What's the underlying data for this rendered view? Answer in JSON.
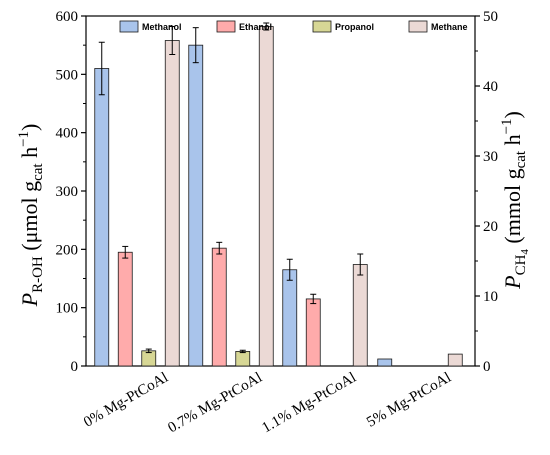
{
  "chart_data": {
    "type": "bar",
    "categories": [
      "0% Mg-PtCoAl",
      "0.7% Mg-PtCoAl",
      "1.1% Mg-PtCoAl",
      "5% Mg-PtCoAl"
    ],
    "series": [
      {
        "name": "Methanol",
        "axis": "left",
        "color": "#A9C4EB",
        "values": [
          510,
          550,
          165,
          12
        ],
        "errors": [
          45,
          30,
          18,
          0
        ]
      },
      {
        "name": "Ethanol",
        "axis": "left",
        "color": "#FFABAB",
        "values": [
          195,
          202,
          115,
          null
        ],
        "errors": [
          10,
          10,
          8,
          0
        ]
      },
      {
        "name": "Propanol",
        "axis": "left",
        "color": "#D7D795",
        "values": [
          26,
          25,
          null,
          null
        ],
        "errors": [
          3,
          2,
          0,
          0
        ]
      },
      {
        "name": "Methane",
        "axis": "right",
        "color": "#EBD9D5",
        "values": [
          46.5,
          48.5,
          14.5,
          1.7
        ],
        "errors": [
          2.0,
          0.5,
          1.5,
          0
        ]
      }
    ],
    "ylabel_left": {
      "main": "P",
      "sub": "R-OH",
      "unit": "(μmol g",
      "unit_sub": "cat",
      "unit_end": " h",
      "unit_sup": "−1",
      "close": ")"
    },
    "ylabel_right": {
      "main": "P",
      "sub": "CH",
      "sub2": "4",
      "unit": "(mmol g",
      "unit_sub": "cat",
      "unit_end": " h",
      "unit_sup": "−1",
      "close": ")"
    },
    "ylim_left": [
      0,
      600
    ],
    "ylim_right": [
      0,
      50
    ],
    "yticks_left": [
      "0",
      "100",
      "200",
      "300",
      "400",
      "500",
      "600"
    ],
    "yticks_right": [
      "0",
      "10",
      "20",
      "30",
      "40",
      "50"
    ],
    "legend_position": "top-center",
    "grid": false
  }
}
